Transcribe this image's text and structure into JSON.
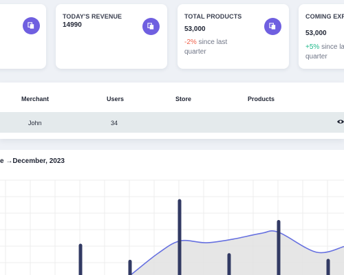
{
  "cards": [
    {
      "title": "",
      "value": "",
      "change_value": "",
      "change_text": ""
    },
    {
      "title": "TODAY'S REVENUE",
      "value": "14990",
      "change_value": "",
      "change_text": ""
    },
    {
      "title": "TOTAL PRODUCTS",
      "value": "53,000",
      "change_value": "-2%",
      "change_text": " since last quarter"
    },
    {
      "title": "COMING EXPIRY MERCHANT",
      "value": "53,000",
      "change_value": "+5%",
      "change_text": " since last quarter"
    }
  ],
  "icons": {
    "card_icon": "copy-icon",
    "view": "eye-icon"
  },
  "colors": {
    "accent": "#6f5fe0",
    "negative": "#f0604a",
    "positive": "#1eb98a",
    "bar": "#323a63",
    "line": "#6670e0"
  },
  "table": {
    "headers": [
      "Merchant",
      "Users",
      "Store",
      "Products"
    ],
    "rows": [
      {
        "merchant": "John",
        "users": "34",
        "store": "",
        "products": ""
      }
    ]
  },
  "chart_title": "e →December, 2023",
  "chart_data": {
    "type": "bar",
    "title": "e →December, 2023",
    "bars": [
      {
        "x": 117,
        "value": 0.33
      },
      {
        "x": 189,
        "value": 0.16
      },
      {
        "x": 261,
        "value": 0.8
      },
      {
        "x": 333,
        "value": 0.23
      },
      {
        "x": 405,
        "value": 0.58
      },
      {
        "x": 477,
        "value": 0.17
      }
    ],
    "line_values": [
      0.0,
      0.23,
      0.36,
      0.34,
      0.38,
      0.44,
      0.45,
      0.24,
      0.3
    ],
    "grid": true
  }
}
